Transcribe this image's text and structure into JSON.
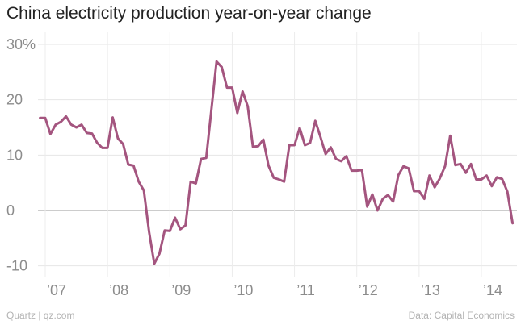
{
  "chart_data": {
    "type": "line",
    "title": "China electricity production year-on-year change",
    "xlabel": "",
    "ylabel": "",
    "ylim": [
      -12,
      30
    ],
    "y_ticks": [
      {
        "value": 30,
        "label": "30%"
      },
      {
        "value": 20,
        "label": "20"
      },
      {
        "value": 10,
        "label": "10"
      },
      {
        "value": 0,
        "label": "0"
      },
      {
        "value": -10,
        "label": "-10"
      }
    ],
    "x_ticks": [
      {
        "value": 2007,
        "label": "’07"
      },
      {
        "value": 2008,
        "label": "’08"
      },
      {
        "value": 2009,
        "label": "’09"
      },
      {
        "value": 2010,
        "label": "’10"
      },
      {
        "value": 2011,
        "label": "’11"
      },
      {
        "value": 2012,
        "label": "’12"
      },
      {
        "value": 2013,
        "label": "’13"
      },
      {
        "value": 2014,
        "label": "’14"
      }
    ],
    "xlim": [
      2006.75,
      2014.6
    ],
    "grid": true,
    "series": [
      {
        "name": "Electricity production YoY %",
        "color": "#a4557f",
        "x": [
          2006.917,
          2007.0,
          2007.083,
          2007.167,
          2007.25,
          2007.333,
          2007.417,
          2007.5,
          2007.583,
          2007.667,
          2007.75,
          2007.833,
          2007.917,
          2008.0,
          2008.083,
          2008.167,
          2008.25,
          2008.333,
          2008.417,
          2008.5,
          2008.583,
          2008.667,
          2008.75,
          2008.833,
          2008.917,
          2009.0,
          2009.083,
          2009.167,
          2009.25,
          2009.333,
          2009.417,
          2009.5,
          2009.583,
          2009.667,
          2009.75,
          2009.833,
          2009.917,
          2010.0,
          2010.083,
          2010.167,
          2010.25,
          2010.333,
          2010.417,
          2010.5,
          2010.583,
          2010.667,
          2010.75,
          2010.833,
          2010.917,
          2011.0,
          2011.083,
          2011.167,
          2011.25,
          2011.333,
          2011.417,
          2011.5,
          2011.583,
          2011.667,
          2011.75,
          2011.833,
          2011.917,
          2012.0,
          2012.083,
          2012.167,
          2012.25,
          2012.333,
          2012.417,
          2012.5,
          2012.583,
          2012.667,
          2012.75,
          2012.833,
          2012.917,
          2013.0,
          2013.083,
          2013.167,
          2013.25,
          2013.333,
          2013.417,
          2013.5,
          2013.583,
          2013.667,
          2013.75,
          2013.833,
          2013.917,
          2014.0,
          2014.083,
          2014.167,
          2014.25,
          2014.333,
          2014.417,
          2014.5
        ],
        "values": [
          16.7,
          16.7,
          13.8,
          15.5,
          16.0,
          17.0,
          15.5,
          15.0,
          15.5,
          14.0,
          13.9,
          12.2,
          11.3,
          11.3,
          16.8,
          13.0,
          12.0,
          8.3,
          8.1,
          5.2,
          3.6,
          -3.9,
          -9.6,
          -7.8,
          -3.6,
          -3.7,
          -1.3,
          -3.4,
          -2.7,
          5.2,
          4.9,
          9.3,
          9.5,
          18.2,
          26.9,
          25.9,
          22.2,
          22.2,
          17.6,
          21.5,
          18.8,
          11.5,
          11.6,
          12.8,
          8.1,
          5.9,
          5.6,
          5.2,
          11.8,
          11.8,
          14.9,
          11.8,
          12.2,
          16.2,
          13.3,
          10.2,
          11.4,
          9.3,
          8.9,
          9.8,
          7.2,
          7.2,
          7.3,
          0.7,
          2.9,
          0.0,
          2.1,
          2.8,
          1.6,
          6.4,
          8.0,
          7.6,
          3.5,
          3.5,
          2.1,
          6.3,
          4.2,
          5.8,
          8.0,
          13.5,
          8.2,
          8.4,
          6.8,
          8.4,
          5.6,
          5.6,
          6.3,
          4.4,
          6.0,
          5.7,
          3.4,
          -2.3
        ]
      }
    ]
  },
  "footer": {
    "left": "Quartz | qz.com",
    "right": "Data: Capital Economics"
  }
}
